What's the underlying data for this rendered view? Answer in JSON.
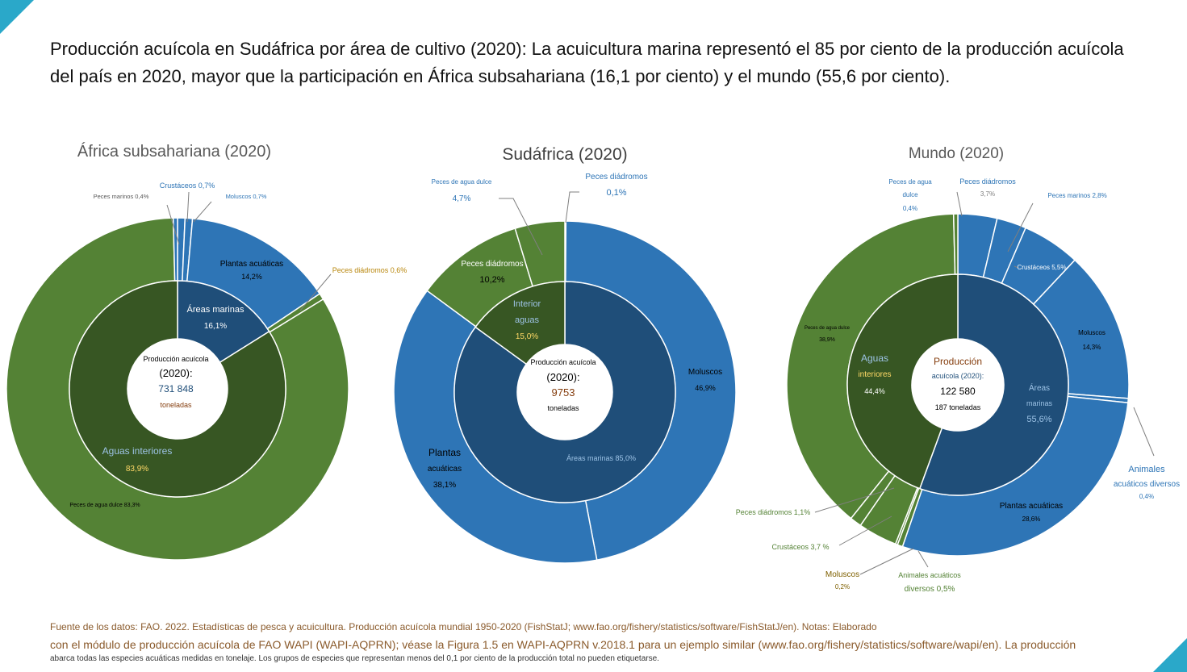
{
  "headline": "Producción acuícola en Sudáfrica por área de cultivo (2020): La acuicultura marina representó el 85 por ciento de la producción acuícola del país en 2020, mayor que la participación en África subsahariana (16,1 por ciento) y el mundo (55,6 por ciento).",
  "colors": {
    "marine_blue": "#2e75b6",
    "marine_dark": "#1f4e79",
    "inland_green": "#548235",
    "inland_dark": "#375623",
    "accent": "#2aa8c9"
  },
  "chart_data": [
    {
      "type": "pie",
      "title": "África subsahariana (2020)",
      "center_label": [
        "Producción acuícola",
        "(2020):",
        "731 848",
        "toneladas"
      ],
      "inner_ring": [
        {
          "name": "Áreas marinas",
          "value": 16.1,
          "label": "16,1%",
          "group": "marine"
        },
        {
          "name": "Aguas interiores",
          "value": 83.9,
          "label": "83,9%",
          "group": "inland"
        }
      ],
      "outer_ring": [
        {
          "name": "Crustáceos",
          "value": 0.7,
          "label": "Crustáceos 0,7%",
          "group": "marine"
        },
        {
          "name": "Moluscos",
          "value": 0.7,
          "label": "Moluscos 0,7%",
          "group": "marine"
        },
        {
          "name": "Plantas acuáticas",
          "value": 14.2,
          "label": "Plantas acuáticas 14,2%",
          "group": "marine"
        },
        {
          "name": "Peces diádromos",
          "value": 0.6,
          "label": "Peces diádromos 0,6%",
          "group": "inland"
        },
        {
          "name": "Peces de agua dulce",
          "value": 83.3,
          "label": "Peces de agua dulce 83,3%",
          "group": "inland"
        },
        {
          "name": "Peces marinos",
          "value": 0.4,
          "label": "Peces marinos 0,4%",
          "group": "marine"
        }
      ]
    },
    {
      "type": "pie",
      "title": "Sudáfrica (2020)",
      "center_label": [
        "Producción acuícola",
        "(2020):",
        "9753",
        "toneladas"
      ],
      "inner_ring": [
        {
          "name": "Áreas marinas",
          "value": 85.0,
          "label": "Áreas marinas 85,0%",
          "group": "marine"
        },
        {
          "name": "Interior aguas",
          "value": 15.0,
          "label": "15,0%",
          "group": "inland"
        }
      ],
      "outer_ring": [
        {
          "name": "Peces diádromos",
          "value": 0.1,
          "label": "0,1%",
          "group": "marine"
        },
        {
          "name": "Moluscos",
          "value": 46.9,
          "label": "46,9%",
          "group": "marine"
        },
        {
          "name": "Plantas acuáticas",
          "value": 38.1,
          "label": "38,1%",
          "group": "marine"
        },
        {
          "name": "Peces diádromos",
          "value": 10.2,
          "label": "10,2%",
          "group": "inland"
        },
        {
          "name": "Peces de agua dulce",
          "value": 4.7,
          "label": "4,7%",
          "group": "inland"
        }
      ]
    },
    {
      "type": "pie",
      "title": "Mundo (2020)",
      "center_label": [
        "Producción",
        "acuícola (2020):",
        "122 580",
        "187 toneladas"
      ],
      "inner_ring": [
        {
          "name": "Áreas marinas",
          "value": 55.6,
          "label": "55,6%",
          "group": "marine"
        },
        {
          "name": "Aguas interiores",
          "value": 44.4,
          "label": "44,4%",
          "group": "inland"
        }
      ],
      "outer_ring": [
        {
          "name": "Peces diádromos",
          "value": 3.7,
          "label": "3,7%",
          "group": "marine"
        },
        {
          "name": "Peces marinos",
          "value": 2.8,
          "label": "Peces marinos 2,8%",
          "group": "marine"
        },
        {
          "name": "Crustáceos",
          "value": 5.5,
          "label": "Crustáceos 5,5%",
          "group": "marine"
        },
        {
          "name": "Moluscos",
          "value": 14.3,
          "label": "14,3%",
          "group": "marine"
        },
        {
          "name": "Animales acuáticos diversos",
          "value": 0.4,
          "label": "0,4%",
          "group": "marine"
        },
        {
          "name": "Plantas acuáticas",
          "value": 28.6,
          "label": "Plantas acuáticas 28,6%",
          "group": "marine"
        },
        {
          "name": "Animales acuáticos diversos",
          "value": 0.5,
          "label": "diversos 0,5%",
          "group": "inland"
        },
        {
          "name": "Moluscos",
          "value": 0.2,
          "label": "0,2%",
          "group": "inland"
        },
        {
          "name": "Crustáceos",
          "value": 3.7,
          "label": "Crustáceos 3,7 %",
          "group": "inland"
        },
        {
          "name": "Peces diádromos",
          "value": 1.1,
          "label": "Peces diádromos 1,1%",
          "group": "inland"
        },
        {
          "name": "Peces de agua dulce",
          "value": 38.9,
          "label": "Peces de agua dulce 38,9%",
          "group": "inland"
        },
        {
          "name": "Peces de agua dulce",
          "value": 0.4,
          "label": "0,4%",
          "group": "inland"
        }
      ]
    }
  ],
  "labels": {
    "ssa": {
      "crust": "Crustáceos 0,7%",
      "marinos": "Peces marinos 0,4%",
      "moluscos": "Moluscos 0,7%",
      "plantas": "Plantas acuáticas",
      "plantas_v": "14,2%",
      "diadromos": "Peces diádromos 0,6%",
      "marinas": "Áreas marinas",
      "marinas_v": "16,1%",
      "interiores": "Aguas interiores",
      "interiores_v": "83,9%",
      "dulce": "Peces de agua dulce 83,3%"
    },
    "za": {
      "dulce_1": "Peces de agua dulce",
      "dulce_v": "4,7%",
      "diadromos_m": "Peces diádromos",
      "diadromos_m_v": "0,1%",
      "diadromos_i": "Peces diádromos",
      "diadromos_i_v": "10,2%",
      "interior_1": "Interior",
      "interior_2": "aguas",
      "interior_v": "15,0%",
      "moluscos": "Moluscos",
      "moluscos_v": "46,9%",
      "plantas_1": "Plantas",
      "plantas_2": "acuáticas",
      "plantas_v": "38,1%",
      "marinas": "Áreas marinas 85,0%"
    },
    "world": {
      "dulce_1": "Peces de agua",
      "dulce_2": "dulce",
      "dulce_v": "0,4%",
      "diadromos": "Peces diádromos",
      "diadromos_v": "3,7%",
      "marinos": "Peces marinos 2,8%",
      "crust": "Crustáceos 5,5%",
      "moluscos": "Moluscos",
      "moluscos_v": "14,3%",
      "dulce_big": "Peces de agua dulce",
      "dulce_big_v": "38,9%",
      "interiores_1": "Aguas",
      "interiores_2": "interiores",
      "interiores_v": "44,4%",
      "marinas_1": "Áreas",
      "marinas_2": "marinas",
      "marinas_v": "55,6%",
      "animales_1": "Animales",
      "animales_2": "acuáticos diversos",
      "animales_v": "0,4%",
      "plantas": "Plantas acuáticas",
      "plantas_v": "28,6%",
      "diadromos_i": "Peces diádromos 1,1%",
      "crust_i": "Crustáceos 3,7 %",
      "moluscos_i": "Moluscos",
      "moluscos_i_v": "0,2%",
      "animales_i_1": "Animales acuáticos",
      "animales_i_2": "diversos 0,5%"
    }
  },
  "footer": {
    "line1": "Fuente de los datos: FAO. 2022. Estadísticas de pesca y acuicultura. Producción acuícola mundial 1950-2020 (FishStatJ; www.fao.org/fishery/statistics/software/FishStatJ/en). Notas: Elaborado",
    "line2": "con el módulo de producción acuícola de FAO WAPI (WAPI-AQPRN); véase la Figura 1.5 en WAPI-AQPRN v.2018.1 para un ejemplo similar (www.fao.org/fishery/statistics/software/wapi/en). La producción",
    "line3": "abarca todas las especies acuáticas medidas en tonelaje. Los grupos de especies que representan menos del 0,1 por ciento de la producción total no pueden etiquetarse."
  }
}
